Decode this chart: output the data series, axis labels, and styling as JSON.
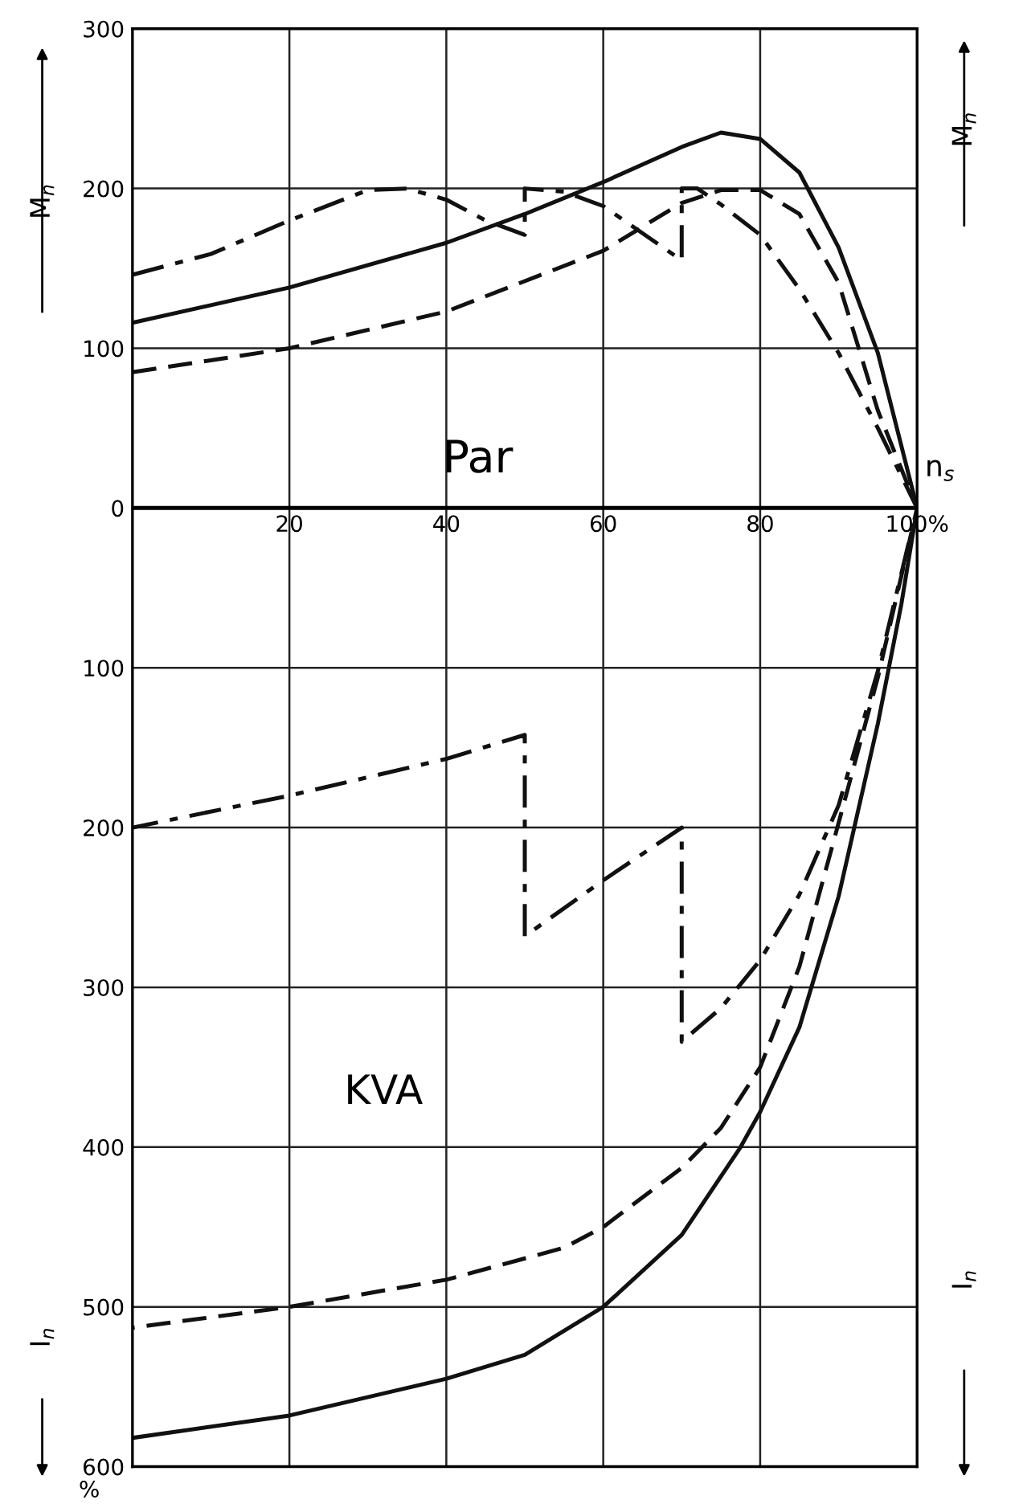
{
  "chart_data": {
    "type": "line",
    "xlabel": "n$_{s}$",
    "ylabel": "M$_{n}$",
    "y2label": "M$_{n}$",
    "annotations": [
      "Par",
      "KVA",
      "I$_{n}$",
      "I$_{n}$",
      "%"
    ],
    "xlim": [
      0,
      100
    ],
    "xticks": [
      20,
      40,
      60,
      80,
      {
        "value": 100,
        "label": "100%"
      }
    ],
    "ylim": [
      -600,
      300
    ],
    "yticks": [
      300,
      200,
      100,
      0,
      {
        "value": -100,
        "label": "100"
      },
      {
        "value": -200,
        "label": "200"
      },
      {
        "value": -300,
        "label": "300"
      },
      {
        "value": -400,
        "label": "400"
      },
      {
        "value": -500,
        "label": "500"
      },
      {
        "value": -600,
        "label": "600"
      }
    ],
    "grid": true,
    "series": [
      {
        "color": "#111111",
        "line_style": "solid",
        "x": [
          0,
          20,
          40,
          50,
          60,
          70,
          75,
          80,
          85,
          90,
          95,
          100,
          98,
          95,
          90,
          85,
          80,
          77.5,
          70,
          60,
          50,
          40,
          20,
          0
        ],
        "values": [
          116,
          138,
          166,
          184,
          204,
          226,
          235,
          231,
          210,
          163,
          97,
          0,
          -60,
          -135,
          -243,
          -325,
          -378,
          -400,
          -455,
          -500,
          -530,
          -545,
          -568,
          -582
        ]
      },
      {
        "color": "#111111",
        "line_style": "dashed",
        "x": [
          0,
          20,
          40,
          60,
          70,
          75,
          80,
          85,
          90,
          95,
          100,
          95,
          90,
          85,
          80,
          75,
          70,
          60,
          55,
          40,
          20,
          0
        ],
        "values": [
          85,
          100,
          123,
          161,
          191,
          199,
          199,
          184,
          141,
          61,
          0,
          -106,
          -197,
          -287,
          -350,
          -388,
          -413,
          -450,
          -463,
          -483,
          -500,
          -513
        ]
      },
      {
        "color": "#111111",
        "line_style": "dashdot",
        "x": [
          0,
          10,
          20,
          30,
          35,
          40,
          45,
          50,
          50,
          55,
          60,
          70,
          70,
          72,
          75,
          80,
          85,
          90,
          95,
          100,
          95,
          90,
          85,
          80,
          75,
          70,
          70,
          60,
          50,
          50,
          40,
          20,
          0
        ],
        "values": [
          146,
          159,
          180,
          199,
          200,
          193,
          180,
          171,
          200,
          198,
          189,
          155,
          200,
          200,
          190,
          171,
          137,
          97,
          50,
          0,
          -102,
          -186,
          -242,
          -283,
          -313,
          -334,
          -200,
          -233,
          -268,
          -142,
          -157,
          -180,
          -200
        ]
      }
    ]
  }
}
